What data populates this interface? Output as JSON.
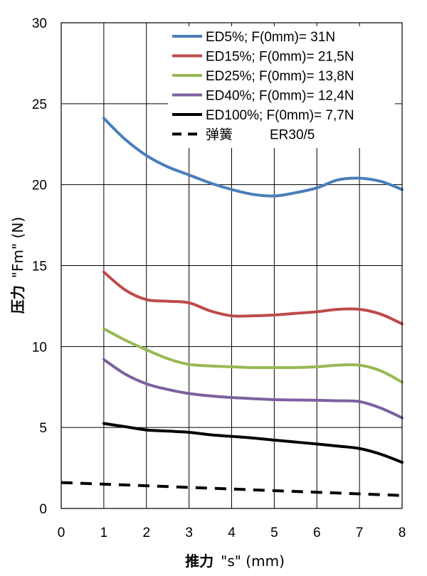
{
  "chart_data": {
    "type": "line",
    "title": "",
    "xlabel": "推力 \"s\" (mm)",
    "xlabel_bold_part": "推力",
    "xlabel_rest": "\"s\" (mm)",
    "ylabel": "压力 \"Fm\" (N)",
    "ylabel_bold_part": "压力",
    "ylabel_rest": "\"Fm\" (N)",
    "xlim": [
      0,
      8
    ],
    "ylim": [
      0,
      30
    ],
    "xticks": [
      "0",
      "1",
      "2",
      "3",
      "4",
      "5",
      "6",
      "7",
      "8"
    ],
    "yticks": [
      "0",
      "5",
      "10",
      "15",
      "20",
      "25",
      "30"
    ],
    "grid": true,
    "legend_position": "top-right",
    "series": [
      {
        "name": "ED5%; F(0mm)= 31N",
        "color": "#4A7EBB",
        "style": "solid",
        "x": [
          1,
          1.5,
          2,
          2.5,
          3,
          3.5,
          4,
          4.5,
          5,
          5.5,
          6,
          6.5,
          7,
          7.5,
          8
        ],
        "y": [
          24.1,
          22.8,
          21.8,
          21.1,
          20.6,
          20.1,
          19.7,
          19.4,
          19.3,
          19.5,
          19.8,
          20.3,
          20.4,
          20.2,
          19.7
        ]
      },
      {
        "name": "ED15%; F(0mm)= 21,5N",
        "color": "#BE4B48",
        "style": "solid",
        "x": [
          1,
          1.5,
          2,
          2.5,
          3,
          3.5,
          4,
          4.5,
          5,
          5.5,
          6,
          6.5,
          7,
          7.5,
          8
        ],
        "y": [
          14.6,
          13.5,
          12.9,
          12.8,
          12.7,
          12.2,
          11.9,
          11.9,
          11.95,
          12.05,
          12.15,
          12.3,
          12.3,
          12.0,
          11.4
        ]
      },
      {
        "name": "ED25%; F(0mm)= 13,8N",
        "color": "#98B954",
        "style": "solid",
        "x": [
          1,
          1.5,
          2,
          2.5,
          3,
          3.5,
          4,
          4.5,
          5,
          5.5,
          6,
          6.5,
          7,
          7.5,
          8
        ],
        "y": [
          11.1,
          10.4,
          9.8,
          9.25,
          8.9,
          8.8,
          8.75,
          8.7,
          8.7,
          8.7,
          8.75,
          8.85,
          8.85,
          8.5,
          7.8
        ]
      },
      {
        "name": "ED40%; F(0mm)= 12,4N",
        "color": "#7D60A0",
        "style": "solid",
        "x": [
          1,
          1.5,
          2,
          2.5,
          3,
          3.5,
          4,
          4.5,
          5,
          5.5,
          6,
          6.5,
          7,
          7.5,
          8
        ],
        "y": [
          9.2,
          8.3,
          7.7,
          7.35,
          7.1,
          6.95,
          6.85,
          6.78,
          6.72,
          6.7,
          6.68,
          6.65,
          6.6,
          6.2,
          5.6
        ]
      },
      {
        "name": "ED100%; F(0mm)= 7,7N",
        "color": "#000000",
        "style": "solid",
        "x": [
          1,
          1.5,
          2,
          2.5,
          3,
          3.5,
          4,
          4.5,
          5,
          5.5,
          6,
          6.5,
          7,
          7.5,
          8
        ],
        "y": [
          5.25,
          5.05,
          4.85,
          4.78,
          4.7,
          4.55,
          4.45,
          4.35,
          4.22,
          4.1,
          3.98,
          3.85,
          3.7,
          3.35,
          2.85
        ]
      },
      {
        "name": "弹簧",
        "name_suffix": "ER30/5",
        "color": "#000000",
        "style": "dashed",
        "x": [
          0,
          1,
          2,
          3,
          4,
          5,
          6,
          7,
          8
        ],
        "y": [
          1.6,
          1.5,
          1.4,
          1.3,
          1.2,
          1.1,
          1.0,
          0.9,
          0.8
        ]
      }
    ]
  }
}
